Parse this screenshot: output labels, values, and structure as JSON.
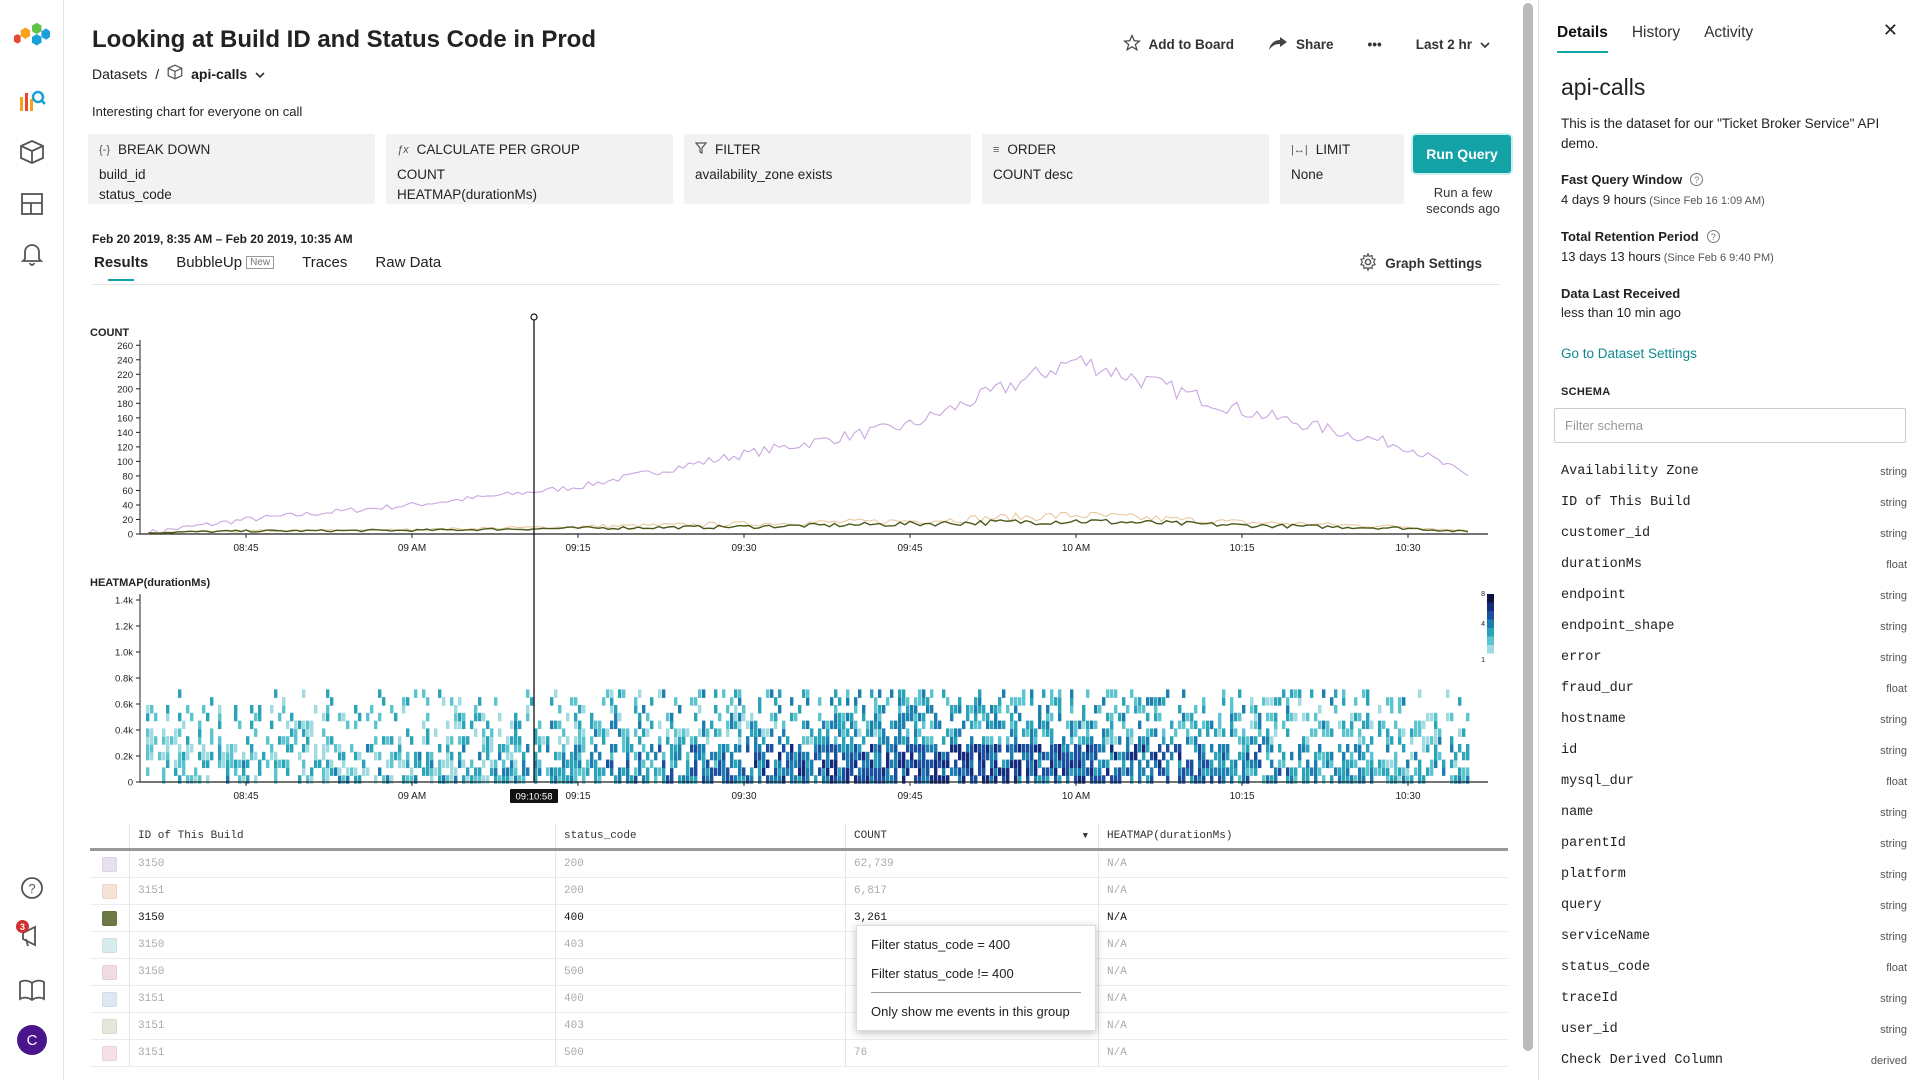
{
  "header": {
    "title": "Looking at Build ID and Status Code in Prod",
    "breadcrumb_root": "Datasets",
    "breadcrumb_sep": "/",
    "dataset_name": "api-calls",
    "description": "Interesting chart for everyone on call",
    "add_to_board": "Add to Board",
    "share": "Share",
    "more": "•••",
    "time_range": "Last 2 hr"
  },
  "query": {
    "break_down": {
      "label": "BREAK DOWN",
      "lines": [
        "build_id",
        "status_code"
      ]
    },
    "calculate": {
      "label": "CALCULATE PER GROUP",
      "lines": [
        "COUNT",
        "HEATMAP(durationMs)"
      ]
    },
    "filter": {
      "label": "FILTER",
      "lines": [
        "availability_zone exists"
      ]
    },
    "order": {
      "label": "ORDER",
      "lines": [
        "COUNT desc"
      ]
    },
    "limit": {
      "label": "LIMIT",
      "lines": [
        "None"
      ]
    },
    "run_button": "Run Query",
    "run_status": "Run a few seconds ago"
  },
  "results": {
    "time_range_text": "Feb 20 2019, 8:35 AM – Feb 20 2019, 10:35 AM",
    "tabs": [
      "Results",
      "BubbleUp",
      "Traces",
      "Raw Data"
    ],
    "new_tag": "New",
    "graph_settings": "Graph Settings"
  },
  "chart_data": [
    {
      "type": "line",
      "title": "COUNT",
      "x_ticks": [
        "08:45",
        "09 AM",
        "09:15",
        "09:30",
        "09:45",
        "10 AM",
        "10:15",
        "10:30"
      ],
      "y_ticks": [
        0,
        20,
        40,
        60,
        80,
        100,
        120,
        140,
        160,
        180,
        200,
        220,
        240,
        260
      ],
      "ylim": [
        0,
        270
      ],
      "series": [
        {
          "color": "#c9a6e0",
          "x": [
            "08:35",
            "08:45",
            "09 AM",
            "09:15",
            "09:30",
            "09:45",
            "10 AM",
            "10:15",
            "10:30",
            "10:34"
          ],
          "values": [
            2,
            20,
            40,
            65,
            110,
            150,
            240,
            170,
            120,
            80
          ]
        },
        {
          "color": "#e8c8a0",
          "x": [
            "08:35",
            "08:45",
            "09 AM",
            "09:15",
            "09:30",
            "09:45",
            "10 AM",
            "10:15",
            "10:30",
            "10:34"
          ],
          "values": [
            2,
            4,
            6,
            10,
            14,
            18,
            26,
            16,
            10,
            4
          ]
        },
        {
          "color": "#4a5a1a",
          "x": [
            "08:35",
            "08:45",
            "09 AM",
            "09:15",
            "09:30",
            "09:45",
            "10 AM",
            "10:15",
            "10:30",
            "10:34"
          ],
          "values": [
            2,
            4,
            5,
            8,
            10,
            14,
            18,
            12,
            8,
            3
          ]
        }
      ],
      "marker_time": "09:10:58"
    },
    {
      "type": "heatmap",
      "title": "HEATMAP(durationMs)",
      "x_ticks": [
        "08:45",
        "09 AM",
        "09:15",
        "09:30",
        "09:45",
        "10 AM",
        "10:15",
        "10:30"
      ],
      "y_ticks": [
        "0",
        "0.2k",
        "0.4k",
        "0.6k",
        "0.8k",
        "1.0k",
        "1.2k",
        "1.4k"
      ],
      "ylim": [
        0,
        1400
      ],
      "legend_ticks": [
        "8",
        "4",
        "1"
      ],
      "palette": [
        "#9fdbe0",
        "#5cc4cf",
        "#2ba3b8",
        "#1d7fb0",
        "#1b4fa0",
        "#142a7a",
        "#0b1440"
      ]
    }
  ],
  "table": {
    "columns": [
      "ID of This Build",
      "status_code",
      "COUNT",
      "HEATMAP(durationMs)"
    ],
    "sort_indicator": "▼",
    "rows": [
      {
        "color": "#e6e0f0",
        "build": "3150",
        "status": "200",
        "count": "62,739",
        "heatmap": "N/A"
      },
      {
        "color": "#f6e3d8",
        "build": "3151",
        "status": "200",
        "count": "6,817",
        "heatmap": "N/A"
      },
      {
        "color": "#6e7a45",
        "build": "3150",
        "status": "400",
        "count": "3,261",
        "heatmap": "N/A"
      },
      {
        "color": "#d7ecec",
        "build": "3150",
        "status": "403",
        "count": "",
        "heatmap": "N/A"
      },
      {
        "color": "#f0dce4",
        "build": "3150",
        "status": "500",
        "count": "",
        "heatmap": "N/A"
      },
      {
        "color": "#dce9f4",
        "build": "3151",
        "status": "400",
        "count": "",
        "heatmap": "N/A"
      },
      {
        "color": "#e4e8d9",
        "build": "3151",
        "status": "403",
        "count": "",
        "heatmap": "N/A"
      },
      {
        "color": "#f6e0e8",
        "build": "3151",
        "status": "500",
        "count": "76",
        "heatmap": "N/A"
      }
    ]
  },
  "context_menu": {
    "items": [
      "Filter status_code = 400",
      "Filter status_code != 400",
      "Only show me events in this group"
    ]
  },
  "details_panel": {
    "tabs": [
      "Details",
      "History",
      "Activity"
    ],
    "close": "✕",
    "dataset_title": "api-calls",
    "dataset_description": "This is the dataset for our \"Ticket Broker Service\" API demo.",
    "fast_query_label": "Fast Query Window",
    "fast_query_value": "4 days 9 hours",
    "fast_query_since": "(Since Feb 16 1:09 AM)",
    "retention_label": "Total Retention Period",
    "retention_value": "13 days 13 hours",
    "retention_since": "(Since Feb 6 9:40 PM)",
    "last_received_label": "Data Last Received",
    "last_received_value": "less than 10 min ago",
    "settings_link": "Go to Dataset Settings",
    "schema_title": "SCHEMA",
    "schema_placeholder": "Filter schema",
    "schema": [
      {
        "name": "Availability Zone",
        "type": "string"
      },
      {
        "name": "ID of This Build",
        "type": "string"
      },
      {
        "name": "customer_id",
        "type": "string"
      },
      {
        "name": "durationMs",
        "type": "float"
      },
      {
        "name": "endpoint",
        "type": "string"
      },
      {
        "name": "endpoint_shape",
        "type": "string"
      },
      {
        "name": "error",
        "type": "string"
      },
      {
        "name": "fraud_dur",
        "type": "float"
      },
      {
        "name": "hostname",
        "type": "string"
      },
      {
        "name": "id",
        "type": "string"
      },
      {
        "name": "mysql_dur",
        "type": "float"
      },
      {
        "name": "name",
        "type": "string"
      },
      {
        "name": "parentId",
        "type": "string"
      },
      {
        "name": "platform",
        "type": "string"
      },
      {
        "name": "query",
        "type": "string"
      },
      {
        "name": "serviceName",
        "type": "string"
      },
      {
        "name": "status_code",
        "type": "float"
      },
      {
        "name": "traceId",
        "type": "string"
      },
      {
        "name": "user_id",
        "type": "string"
      },
      {
        "name": "Check Derived Column",
        "type": "derived"
      }
    ]
  },
  "nav": {
    "notification_count": "3",
    "avatar_initial": "C"
  }
}
